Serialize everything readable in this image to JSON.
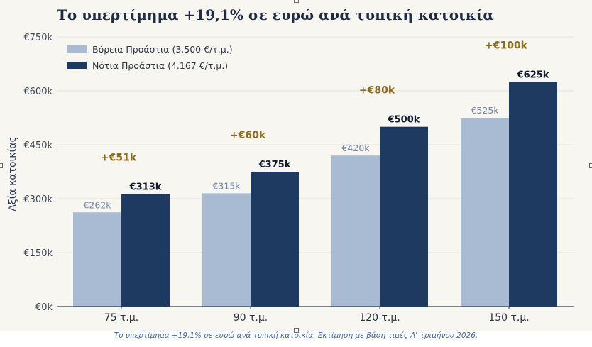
{
  "caption": "Το υπερτίμημα +19,1% σε ευρώ ανά τυπική κατοικία. Εκτίμηση με βάση τιμές Α' τριμήνου 2026.",
  "colors": {
    "background": "#f8f6f1",
    "north": "#a9bbd2",
    "south": "#1f3a60",
    "premium": "#8b6b1c",
    "grid": "#e5e2db",
    "axis": "#2c3e5a"
  },
  "chart_data": {
    "type": "bar",
    "title": "Το υπερτίμημα +19,1% σε ευρώ ανά τυπική κατοικία",
    "ylabel": "Αξία κατοικίας",
    "xlabel": "",
    "ylim": [
      0,
      750
    ],
    "yticks": [
      0,
      150,
      300,
      450,
      600,
      750
    ],
    "ytick_labels": [
      "€0k",
      "€150k",
      "€300k",
      "€450k",
      "€600k",
      "€750k"
    ],
    "categories": [
      "75 τ.μ.",
      "90 τ.μ.",
      "120 τ.μ.",
      "150 τ.μ."
    ],
    "series": [
      {
        "name": "Βόρεια Προάστια (3.500 €/τ.μ.)",
        "values": [
          262,
          315,
          420,
          525
        ],
        "labels": [
          "€262k",
          "€315k",
          "€420k",
          "€525k"
        ]
      },
      {
        "name": "Νότια Προάστια (4.167 €/τ.μ.)",
        "values": [
          313,
          375,
          500,
          625
        ],
        "labels": [
          "€313k",
          "€375k",
          "€500k",
          "€625k"
        ]
      }
    ],
    "premiums": [
      "+€51k",
      "+€60k",
      "+€80k",
      "+€100k"
    ],
    "legend_position": "top-left",
    "grid": true
  }
}
